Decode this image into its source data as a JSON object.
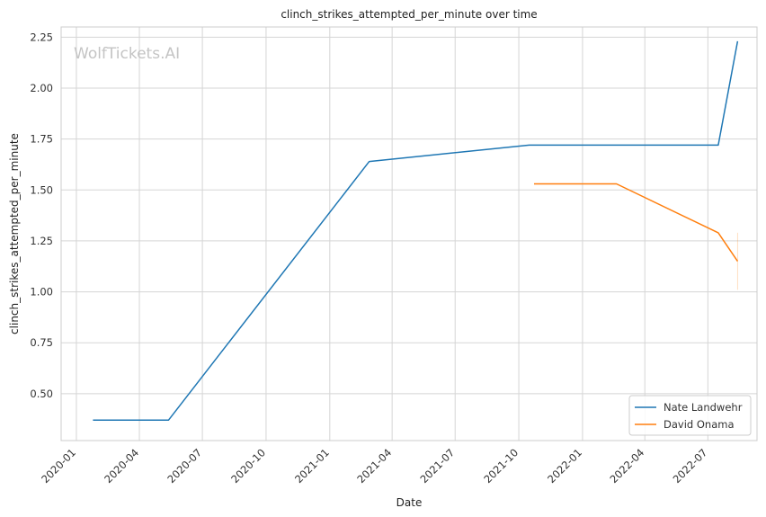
{
  "chart_data": {
    "type": "line",
    "title": "clinch_strikes_attempted_per_minute over time",
    "xlabel": "Date",
    "ylabel": "clinch_strikes_attempted_per_minute",
    "watermark": "WolfTickets.AI",
    "grid": true,
    "legend_position": "lower-right",
    "xlim": [
      "2019-12-10",
      "2022-09-10"
    ],
    "ylim": [
      0.27,
      2.3
    ],
    "x_ticks": [
      {
        "date": "2020-01-01",
        "label": "2020-01"
      },
      {
        "date": "2020-04-01",
        "label": "2020-04"
      },
      {
        "date": "2020-07-01",
        "label": "2020-07"
      },
      {
        "date": "2020-10-01",
        "label": "2020-10"
      },
      {
        "date": "2021-01-01",
        "label": "2021-01"
      },
      {
        "date": "2021-04-01",
        "label": "2021-04"
      },
      {
        "date": "2021-07-01",
        "label": "2021-07"
      },
      {
        "date": "2021-10-01",
        "label": "2021-10"
      },
      {
        "date": "2022-01-01",
        "label": "2022-01"
      },
      {
        "date": "2022-04-01",
        "label": "2022-04"
      },
      {
        "date": "2022-07-01",
        "label": "2022-07"
      }
    ],
    "y_ticks": [
      {
        "value": 0.5,
        "label": "0.50"
      },
      {
        "value": 0.75,
        "label": "0.75"
      },
      {
        "value": 1.0,
        "label": "1.00"
      },
      {
        "value": 1.25,
        "label": "1.25"
      },
      {
        "value": 1.5,
        "label": "1.50"
      },
      {
        "value": 1.75,
        "label": "1.75"
      },
      {
        "value": 2.0,
        "label": "2.00"
      },
      {
        "value": 2.25,
        "label": "2.25"
      }
    ],
    "series": [
      {
        "name": "Nate Landwehr",
        "color": "#1f77b4",
        "points": [
          {
            "x": "2020-01-25",
            "y": 0.37
          },
          {
            "x": "2020-05-13",
            "y": 0.37
          },
          {
            "x": "2021-02-27",
            "y": 1.64
          },
          {
            "x": "2021-10-16",
            "y": 1.72
          },
          {
            "x": "2022-07-16",
            "y": 1.72
          },
          {
            "x": "2022-08-13",
            "y": 2.23
          }
        ]
      },
      {
        "name": "David Onama",
        "color": "#ff7f0e",
        "points": [
          {
            "x": "2021-10-23",
            "y": 1.53
          },
          {
            "x": "2022-02-19",
            "y": 1.53
          },
          {
            "x": "2022-07-16",
            "y": 1.29
          },
          {
            "x": "2022-08-13",
            "y": 1.15
          }
        ],
        "error_bar": {
          "x": "2022-08-13",
          "low": 1.01,
          "high": 1.29
        }
      }
    ]
  }
}
